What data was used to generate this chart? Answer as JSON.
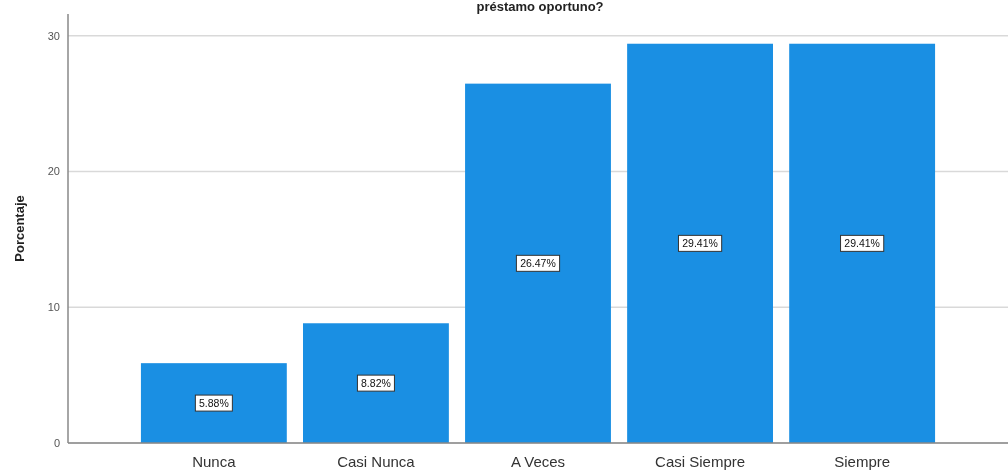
{
  "chart_data": {
    "type": "bar",
    "title": "préstamo oportuno?",
    "ylabel": "Porcentaje",
    "categories": [
      "Nunca",
      "Casi Nunca",
      "A Veces",
      "Casi Siempre",
      "Siempre"
    ],
    "values": [
      5.88,
      8.82,
      26.47,
      29.41,
      29.41
    ],
    "value_labels": [
      "5.88%",
      "8.82%",
      "26.47%",
      "29.41%",
      "29.41%"
    ],
    "color": "#1a8fe3",
    "ylim": [
      0,
      31.6
    ],
    "yticks": [
      0,
      10,
      20,
      30
    ],
    "grid": "y"
  }
}
